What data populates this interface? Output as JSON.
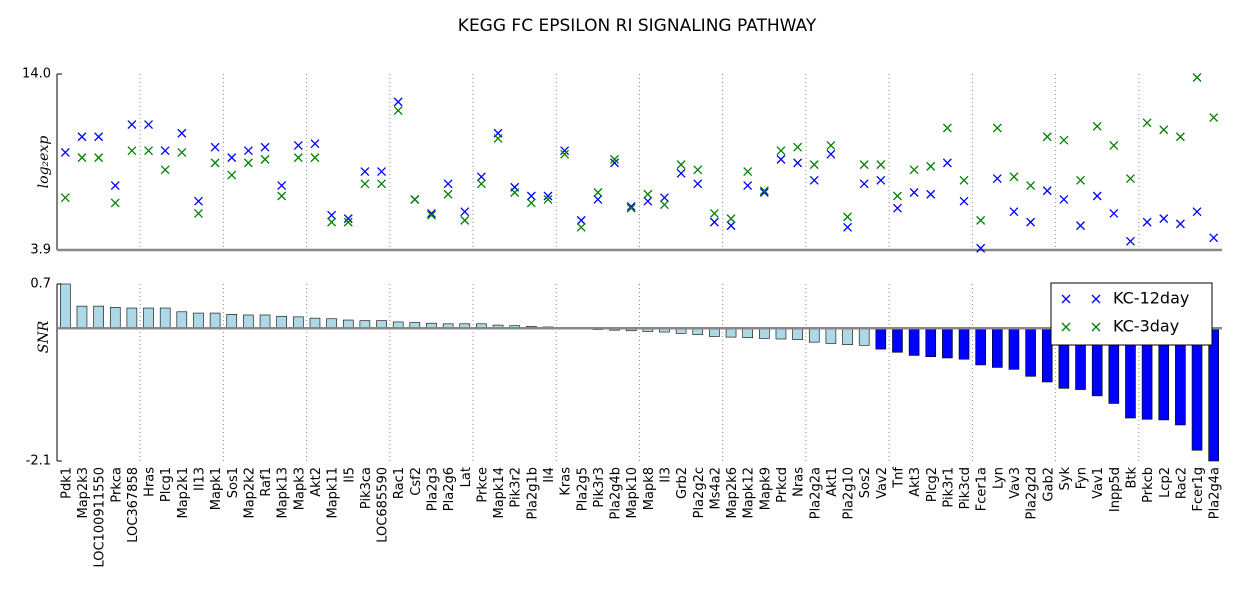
{
  "chart_data": [
    {
      "type": "scatter",
      "title": "KEGG FC EPSILON RI SIGNALING PATHWAY",
      "ylabel": "log₂exp",
      "ylim": [
        3.9,
        14.0
      ],
      "yticks": [
        {
          "value": 14.0,
          "label": "14.0"
        },
        3.9
      ],
      "series": [
        {
          "name": "KC-12day",
          "color": "#0000ff",
          "values": [
            9.5,
            10.4,
            10.4,
            7.6,
            11.1,
            11.1,
            9.6,
            10.6,
            6.7,
            9.8,
            9.2,
            9.6,
            9.8,
            7.6,
            9.9,
            10.0,
            5.9,
            5.7,
            8.4,
            8.4,
            12.4,
            6.8,
            6.0,
            7.7,
            6.1,
            8.1,
            10.6,
            7.5,
            7.0,
            7.0,
            9.6,
            5.6,
            6.8,
            8.9,
            6.4,
            6.7,
            6.9,
            8.3,
            7.7,
            5.5,
            5.3,
            7.6,
            7.2,
            9.1,
            8.9,
            7.9,
            9.4,
            5.2,
            7.7,
            7.9,
            6.3,
            7.2,
            7.1,
            8.9,
            6.7,
            4.0,
            8.0,
            6.1,
            5.5,
            7.3,
            6.8,
            5.3,
            7.0,
            6.0,
            4.4,
            5.5,
            5.7,
            5.4,
            6.1,
            4.6
          ]
        },
        {
          "name": "KC-3day",
          "color": "#008000",
          "values": [
            6.9,
            9.2,
            9.2,
            6.6,
            9.6,
            9.6,
            8.5,
            9.5,
            6.0,
            8.9,
            8.2,
            8.9,
            9.1,
            7.0,
            9.2,
            9.2,
            5.5,
            5.5,
            7.7,
            7.7,
            11.9,
            6.8,
            5.9,
            7.1,
            5.6,
            7.7,
            10.3,
            7.2,
            6.6,
            6.8,
            9.4,
            5.2,
            7.2,
            9.1,
            6.3,
            7.1,
            6.5,
            8.8,
            8.5,
            6.0,
            5.7,
            8.4,
            7.3,
            9.6,
            9.8,
            8.8,
            9.9,
            5.8,
            8.8,
            8.8,
            7.0,
            8.5,
            8.7,
            10.9,
            7.9,
            5.6,
            10.9,
            8.1,
            7.6,
            10.4,
            10.2,
            7.9,
            11.0,
            9.9,
            8.0,
            11.2,
            10.8,
            10.4,
            13.8,
            11.5
          ]
        }
      ]
    },
    {
      "type": "bar",
      "ylabel": "SNR",
      "ylim": [
        -2.1,
        0.7
      ],
      "yticks": [
        0.7,
        -2.1
      ],
      "legend": "upper right",
      "categories": [
        "Pdk1",
        "Map2k3",
        "LOC100911550",
        "Prkca",
        "LOC367858",
        "Hras",
        "Plcg1",
        "Map2k1",
        "Il13",
        "Mapk1",
        "Sos1",
        "Map2k2",
        "Raf1",
        "Mapk13",
        "Mapk3",
        "Akt2",
        "Mapk11",
        "Il5",
        "Pik3ca",
        "LOC685590",
        "Rac1",
        "Csf2",
        "Pla2g3",
        "Pla2g6",
        "Lat",
        "Prkce",
        "Mapk14",
        "Pik3r2",
        "Pla2g1b",
        "Il4",
        "Kras",
        "Pla2g5",
        "Pik3r3",
        "Pla2g4b",
        "Mapk10",
        "Mapk8",
        "Il3",
        "Grb2",
        "Pla2g2c",
        "Ms4a2",
        "Map2k6",
        "Mapk12",
        "Mapk9",
        "Prkcd",
        "Nras",
        "Pla2g2a",
        "Akt1",
        "Pla2g10",
        "Sos2",
        "Vav2",
        "Tnf",
        "Akt3",
        "Plcg2",
        "Pik3r1",
        "Pik3cd",
        "Fcer1a",
        "Lyn",
        "Vav3",
        "Pla2g2d",
        "Gab2",
        "Syk",
        "Fyn",
        "Vav1",
        "Inpp5d",
        "Btk",
        "Prkcb",
        "Lcp2",
        "Rac2",
        "Fcer1g",
        "Pla2g4a"
      ],
      "values": [
        0.7,
        0.35,
        0.35,
        0.33,
        0.32,
        0.32,
        0.32,
        0.26,
        0.24,
        0.24,
        0.22,
        0.21,
        0.21,
        0.19,
        0.18,
        0.16,
        0.15,
        0.13,
        0.12,
        0.12,
        0.1,
        0.09,
        0.08,
        0.07,
        0.07,
        0.07,
        0.05,
        0.04,
        0.03,
        0.02,
        0.01,
        -0.01,
        -0.02,
        -0.03,
        -0.04,
        -0.05,
        -0.06,
        -0.08,
        -0.1,
        -0.13,
        -0.14,
        -0.15,
        -0.16,
        -0.17,
        -0.18,
        -0.22,
        -0.24,
        -0.26,
        -0.27,
        -0.33,
        -0.38,
        -0.43,
        -0.45,
        -0.47,
        -0.49,
        -0.58,
        -0.62,
        -0.65,
        -0.76,
        -0.85,
        -0.95,
        -0.97,
        -1.07,
        -1.19,
        -1.42,
        -1.44,
        -1.45,
        -1.53,
        -1.93,
        -2.1
      ],
      "colors": [
        "#add8e6",
        "#add8e6",
        "#add8e6",
        "#add8e6",
        "#add8e6",
        "#add8e6",
        "#add8e6",
        "#add8e6",
        "#add8e6",
        "#add8e6",
        "#add8e6",
        "#add8e6",
        "#add8e6",
        "#add8e6",
        "#add8e6",
        "#add8e6",
        "#add8e6",
        "#add8e6",
        "#add8e6",
        "#add8e6",
        "#add8e6",
        "#add8e6",
        "#add8e6",
        "#add8e6",
        "#add8e6",
        "#add8e6",
        "#add8e6",
        "#add8e6",
        "#add8e6",
        "#add8e6",
        "#add8e6",
        "#add8e6",
        "#add8e6",
        "#add8e6",
        "#add8e6",
        "#add8e6",
        "#add8e6",
        "#add8e6",
        "#add8e6",
        "#add8e6",
        "#add8e6",
        "#add8e6",
        "#add8e6",
        "#add8e6",
        "#add8e6",
        "#add8e6",
        "#add8e6",
        "#add8e6",
        "#add8e6",
        "#0000ff",
        "#0000ff",
        "#0000ff",
        "#0000ff",
        "#0000ff",
        "#0000ff",
        "#0000ff",
        "#0000ff",
        "#0000ff",
        "#0000ff",
        "#0000ff",
        "#0000ff",
        "#0000ff",
        "#0000ff",
        "#0000ff",
        "#0000ff",
        "#0000ff",
        "#0000ff",
        "#0000ff",
        "#0000ff",
        "#0000ff"
      ]
    }
  ]
}
